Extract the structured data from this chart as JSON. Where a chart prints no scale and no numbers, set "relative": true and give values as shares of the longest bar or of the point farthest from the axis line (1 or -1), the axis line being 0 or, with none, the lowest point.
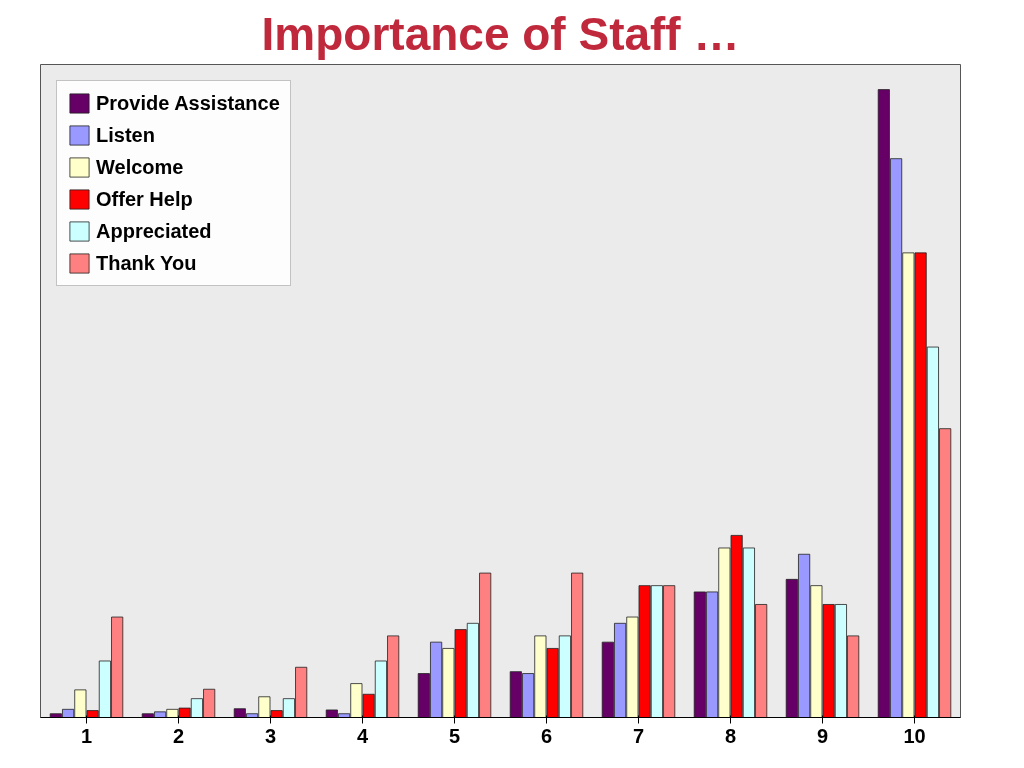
{
  "chart_data": {
    "type": "bar",
    "title": "Importance of Staff …",
    "relative": true,
    "legend": "top left",
    "categories": [
      "1",
      "2",
      "3",
      "4",
      "5",
      "6",
      "7",
      "8",
      "9",
      "10"
    ],
    "series": [
      {
        "name": "Provide Assistance",
        "color": "#660066",
        "values": [
          0.006,
          0.006,
          0.014,
          0.012,
          0.07,
          0.073,
          0.12,
          0.2,
          0.22,
          1
        ]
      },
      {
        "name": "Listen",
        "color": "#9999ff",
        "values": [
          0.013,
          0.009,
          0.006,
          0.006,
          0.12,
          0.07,
          0.15,
          0.2,
          0.26,
          0.89
        ]
      },
      {
        "name": "Welcome",
        "color": "#ffffcc",
        "values": [
          0.044,
          0.013,
          0.033,
          0.054,
          0.11,
          0.13,
          0.16,
          0.27,
          0.21,
          0.74
        ]
      },
      {
        "name": "Offer Help",
        "color": "#ff0000",
        "values": [
          0.011,
          0.015,
          0.011,
          0.037,
          0.14,
          0.11,
          0.21,
          0.29,
          0.18,
          0.74
        ]
      },
      {
        "name": "Appreciated",
        "color": "#ccffff",
        "values": [
          0.09,
          0.03,
          0.03,
          0.09,
          0.15,
          0.13,
          0.21,
          0.27,
          0.18,
          0.59
        ]
      },
      {
        "name": "Thank You",
        "color": "#ff8080",
        "values": [
          0.16,
          0.045,
          0.08,
          0.13,
          0.23,
          0.23,
          0.21,
          0.18,
          0.13,
          0.46
        ]
      }
    ]
  }
}
